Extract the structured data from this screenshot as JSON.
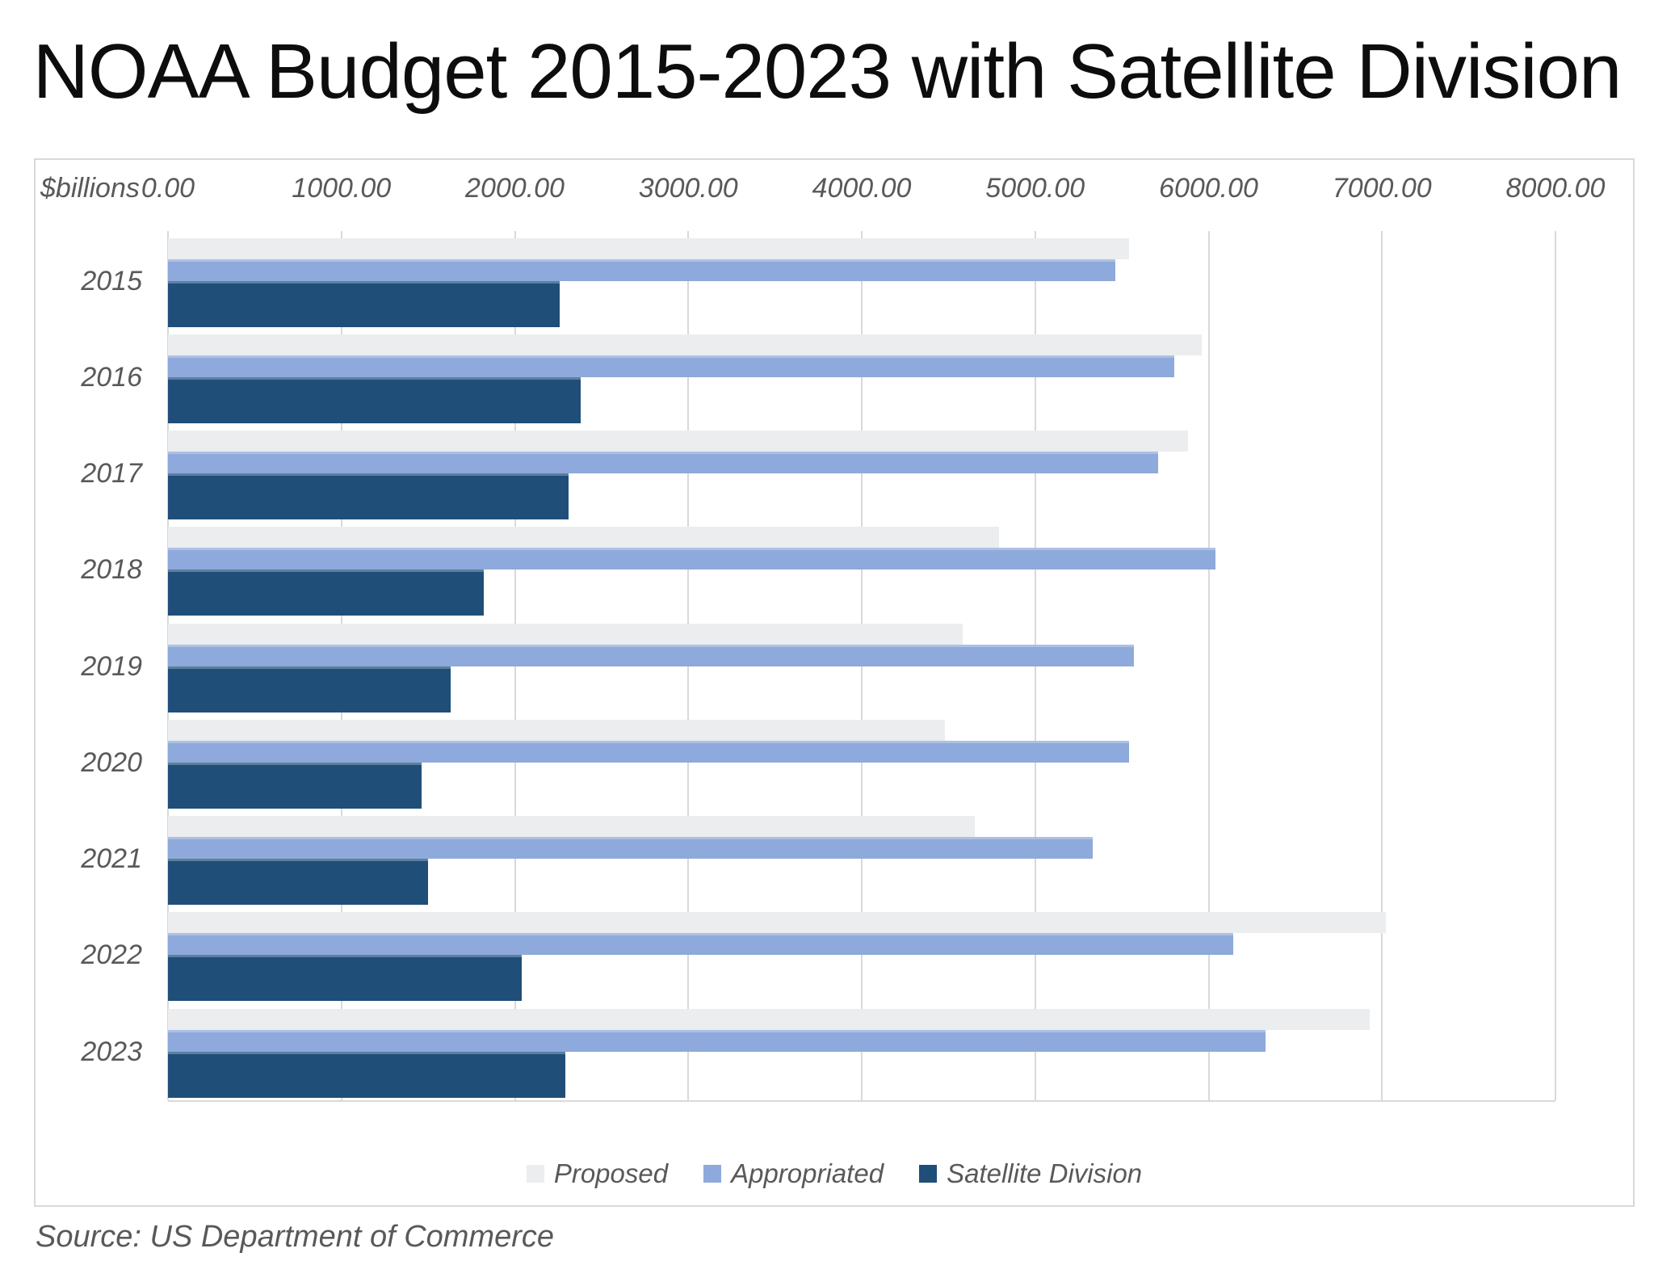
{
  "title": "NOAA Budget 2015-2023 with Satellite Division",
  "source": "Source: US Department of Commerce",
  "axis": {
    "unit_label": "$billions"
  },
  "chart_data": {
    "type": "bar",
    "orientation": "horizontal",
    "title": "NOAA Budget 2015-2023 with Satellite Division",
    "xlabel": "$billions",
    "ylabel": "",
    "xlim": [
      0,
      8000
    ],
    "grid": true,
    "legend_position": "bottom",
    "x_ticks": [
      "0.00",
      "1000.00",
      "2000.00",
      "3000.00",
      "4000.00",
      "5000.00",
      "6000.00",
      "7000.00",
      "8000.00"
    ],
    "x_tick_values": [
      0,
      1000,
      2000,
      3000,
      4000,
      5000,
      6000,
      7000,
      8000
    ],
    "categories": [
      "2015",
      "2016",
      "2017",
      "2018",
      "2019",
      "2020",
      "2021",
      "2022",
      "2023"
    ],
    "series": [
      {
        "name": "Proposed",
        "color": "#ECEDEE",
        "values": [
          5540,
          5960,
          5880,
          4790,
          4580,
          4480,
          4650,
          7020,
          6930
        ]
      },
      {
        "name": "Appropriated",
        "color": "#8EA9DB",
        "values": [
          5460,
          5800,
          5710,
          6040,
          5570,
          5540,
          5330,
          6140,
          6330
        ]
      },
      {
        "name": "Satellite Division",
        "color": "#1F4E79",
        "values": [
          2260,
          2380,
          2310,
          1820,
          1630,
          1460,
          1500,
          2040,
          2290
        ]
      }
    ],
    "colors": {
      "gridline": "#d9d9d9",
      "axis_text": "#595959",
      "title_text": "#0d0d0d"
    }
  }
}
